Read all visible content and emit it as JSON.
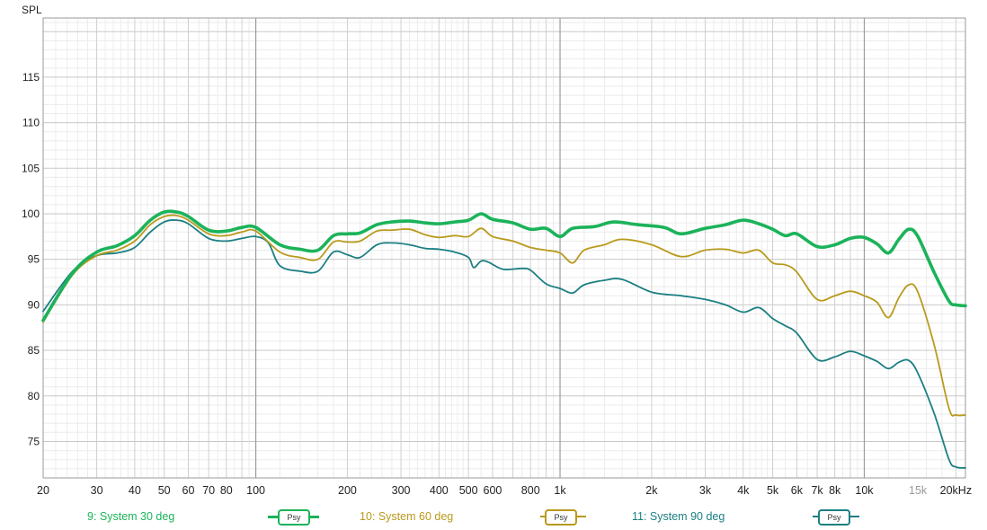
{
  "chart_data": {
    "type": "line",
    "y_axis_title": "SPL",
    "x_unit_label": "Hz",
    "xscale": "log",
    "xlim": [
      20,
      21500
    ],
    "ylim": [
      71,
      121.5
    ],
    "grid": true,
    "y_ticks": [
      75,
      80,
      85,
      90,
      95,
      100,
      105,
      110,
      115
    ],
    "x_ticks": [
      {
        "v": 20,
        "label": "20"
      },
      {
        "v": 30,
        "label": "30"
      },
      {
        "v": 40,
        "label": "40"
      },
      {
        "v": 50,
        "label": "50"
      },
      {
        "v": 60,
        "label": "60"
      },
      {
        "v": 70,
        "label": "70"
      },
      {
        "v": 80,
        "label": "80"
      },
      {
        "v": 100,
        "label": "100"
      },
      {
        "v": 200,
        "label": "200"
      },
      {
        "v": 300,
        "label": "300"
      },
      {
        "v": 400,
        "label": "400"
      },
      {
        "v": 500,
        "label": "500"
      },
      {
        "v": 600,
        "label": "600"
      },
      {
        "v": 800,
        "label": "800"
      },
      {
        "v": 1000,
        "label": "1k"
      },
      {
        "v": 2000,
        "label": "2k"
      },
      {
        "v": 3000,
        "label": "3k"
      },
      {
        "v": 4000,
        "label": "4k"
      },
      {
        "v": 5000,
        "label": "5k"
      },
      {
        "v": 6000,
        "label": "6k"
      },
      {
        "v": 7000,
        "label": "7k"
      },
      {
        "v": 8000,
        "label": "8k"
      },
      {
        "v": 10000,
        "label": "10k"
      },
      {
        "v": 15000,
        "label": "15k",
        "muted": true
      },
      {
        "v": 20000,
        "label": "20kHz"
      }
    ],
    "series": [
      {
        "name": "9: System 30 deg",
        "color": "#1bb35a",
        "points": [
          [
            20,
            88.3
          ],
          [
            25,
            93.5
          ],
          [
            30,
            95.8
          ],
          [
            35,
            96.5
          ],
          [
            40,
            97.6
          ],
          [
            45,
            99.3
          ],
          [
            50,
            100.2
          ],
          [
            55,
            100.2
          ],
          [
            60,
            99.7
          ],
          [
            70,
            98.2
          ],
          [
            80,
            98.1
          ],
          [
            90,
            98.5
          ],
          [
            100,
            98.5
          ],
          [
            120,
            96.6
          ],
          [
            140,
            96.1
          ],
          [
            160,
            96.0
          ],
          [
            180,
            97.6
          ],
          [
            200,
            97.8
          ],
          [
            220,
            97.9
          ],
          [
            250,
            98.8
          ],
          [
            280,
            99.1
          ],
          [
            320,
            99.2
          ],
          [
            360,
            99.0
          ],
          [
            400,
            98.9
          ],
          [
            450,
            99.1
          ],
          [
            500,
            99.3
          ],
          [
            550,
            100.0
          ],
          [
            600,
            99.4
          ],
          [
            700,
            99.0
          ],
          [
            800,
            98.3
          ],
          [
            900,
            98.4
          ],
          [
            1000,
            97.5
          ],
          [
            1100,
            98.4
          ],
          [
            1300,
            98.6
          ],
          [
            1500,
            99.1
          ],
          [
            1800,
            98.8
          ],
          [
            2200,
            98.5
          ],
          [
            2500,
            97.8
          ],
          [
            3000,
            98.4
          ],
          [
            3500,
            98.8
          ],
          [
            4000,
            99.3
          ],
          [
            4500,
            98.9
          ],
          [
            5000,
            98.3
          ],
          [
            5500,
            97.6
          ],
          [
            6000,
            97.8
          ],
          [
            7000,
            96.4
          ],
          [
            8000,
            96.6
          ],
          [
            9000,
            97.3
          ],
          [
            10000,
            97.4
          ],
          [
            11000,
            96.7
          ],
          [
            12000,
            95.7
          ],
          [
            13000,
            97.2
          ],
          [
            14000,
            98.3
          ],
          [
            15000,
            97.5
          ],
          [
            17000,
            93.5
          ],
          [
            19000,
            90.4
          ],
          [
            20000,
            90.0
          ],
          [
            21500,
            89.9
          ]
        ]
      },
      {
        "name": "10: System 60 deg",
        "color": "#b99a1c",
        "points": [
          [
            20,
            88.1
          ],
          [
            25,
            93.3
          ],
          [
            30,
            95.4
          ],
          [
            35,
            96.0
          ],
          [
            40,
            97.0
          ],
          [
            45,
            98.8
          ],
          [
            50,
            99.7
          ],
          [
            55,
            99.8
          ],
          [
            60,
            99.3
          ],
          [
            70,
            97.8
          ],
          [
            80,
            97.6
          ],
          [
            90,
            98.0
          ],
          [
            100,
            98.1
          ],
          [
            120,
            95.8
          ],
          [
            140,
            95.2
          ],
          [
            160,
            95.0
          ],
          [
            180,
            96.9
          ],
          [
            200,
            96.9
          ],
          [
            220,
            97.0
          ],
          [
            250,
            98.1
          ],
          [
            280,
            98.2
          ],
          [
            320,
            98.3
          ],
          [
            360,
            97.7
          ],
          [
            400,
            97.4
          ],
          [
            450,
            97.6
          ],
          [
            500,
            97.5
          ],
          [
            550,
            98.4
          ],
          [
            600,
            97.5
          ],
          [
            700,
            97.0
          ],
          [
            800,
            96.3
          ],
          [
            900,
            96.0
          ],
          [
            1000,
            95.7
          ],
          [
            1100,
            94.6
          ],
          [
            1200,
            96.0
          ],
          [
            1400,
            96.6
          ],
          [
            1600,
            97.2
          ],
          [
            2000,
            96.6
          ],
          [
            2500,
            95.3
          ],
          [
            3000,
            96.0
          ],
          [
            3500,
            96.1
          ],
          [
            4000,
            95.7
          ],
          [
            4500,
            96.0
          ],
          [
            5000,
            94.6
          ],
          [
            5500,
            94.4
          ],
          [
            6000,
            93.6
          ],
          [
            7000,
            90.6
          ],
          [
            8000,
            91.0
          ],
          [
            9000,
            91.5
          ],
          [
            10000,
            91.0
          ],
          [
            11000,
            90.3
          ],
          [
            12000,
            88.6
          ],
          [
            13000,
            90.8
          ],
          [
            14000,
            92.2
          ],
          [
            15000,
            91.4
          ],
          [
            17000,
            85.5
          ],
          [
            19000,
            78.6
          ],
          [
            20000,
            77.9
          ],
          [
            21500,
            77.9
          ]
        ]
      },
      {
        "name": "11: System 90 deg",
        "color": "#1b7f82",
        "points": [
          [
            20,
            89.3
          ],
          [
            25,
            93.7
          ],
          [
            30,
            95.4
          ],
          [
            35,
            95.7
          ],
          [
            40,
            96.3
          ],
          [
            45,
            98.0
          ],
          [
            50,
            99.1
          ],
          [
            55,
            99.3
          ],
          [
            60,
            98.9
          ],
          [
            70,
            97.3
          ],
          [
            80,
            97.0
          ],
          [
            90,
            97.3
          ],
          [
            100,
            97.5
          ],
          [
            110,
            96.8
          ],
          [
            120,
            94.3
          ],
          [
            140,
            93.7
          ],
          [
            160,
            93.7
          ],
          [
            180,
            95.8
          ],
          [
            200,
            95.5
          ],
          [
            220,
            95.2
          ],
          [
            250,
            96.6
          ],
          [
            280,
            96.8
          ],
          [
            320,
            96.6
          ],
          [
            360,
            96.2
          ],
          [
            400,
            96.1
          ],
          [
            450,
            95.8
          ],
          [
            500,
            95.2
          ],
          [
            520,
            94.1
          ],
          [
            550,
            94.8
          ],
          [
            580,
            94.7
          ],
          [
            650,
            93.9
          ],
          [
            750,
            94.0
          ],
          [
            800,
            93.8
          ],
          [
            900,
            92.3
          ],
          [
            1000,
            91.8
          ],
          [
            1100,
            91.3
          ],
          [
            1200,
            92.2
          ],
          [
            1400,
            92.7
          ],
          [
            1600,
            92.8
          ],
          [
            2000,
            91.4
          ],
          [
            2500,
            91.0
          ],
          [
            3000,
            90.6
          ],
          [
            3500,
            90.0
          ],
          [
            4000,
            89.2
          ],
          [
            4500,
            89.7
          ],
          [
            5000,
            88.5
          ],
          [
            5500,
            87.7
          ],
          [
            6000,
            86.9
          ],
          [
            7000,
            84.0
          ],
          [
            8000,
            84.3
          ],
          [
            9000,
            84.9
          ],
          [
            10000,
            84.4
          ],
          [
            11000,
            83.8
          ],
          [
            12000,
            83.0
          ],
          [
            13000,
            83.7
          ],
          [
            14000,
            83.9
          ],
          [
            15000,
            82.5
          ],
          [
            17000,
            78.0
          ],
          [
            19000,
            73.0
          ],
          [
            20000,
            72.2
          ],
          [
            21500,
            72.1
          ]
        ]
      }
    ]
  },
  "legend": [
    {
      "label": "9: System 30 deg",
      "button": "Psy",
      "color": "#1bb35a"
    },
    {
      "label": "10: System 60 deg",
      "button": "Psy",
      "color": "#b99a1c"
    },
    {
      "label": "11: System 90 deg",
      "button": "Psy",
      "color": "#1b7f82"
    }
  ]
}
